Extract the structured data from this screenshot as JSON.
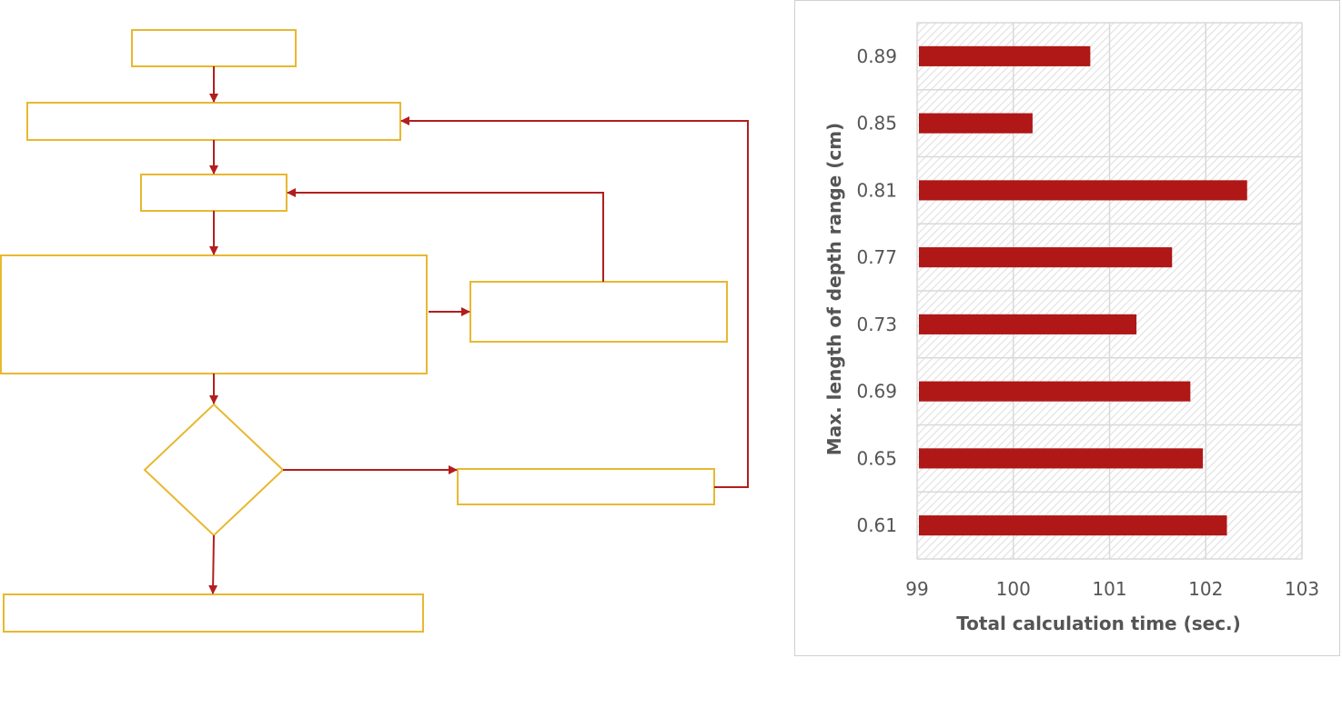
{
  "colors": {
    "box_border": "#e8b830",
    "arrow": "#b21e1e",
    "bar": "#b01717",
    "grid": "#d9d9d9",
    "label_text": "#555555"
  },
  "chart_data": {
    "type": "bar",
    "orientation": "horizontal",
    "categories": [
      "0.61",
      "0.65",
      "0.69",
      "0.73",
      "0.77",
      "0.81",
      "0.85",
      "0.89"
    ],
    "values": [
      102.22,
      101.97,
      101.84,
      101.28,
      101.65,
      102.43,
      100.2,
      100.8
    ],
    "xlabel": "Total calculation time (sec.)",
    "ylabel": "Max. length of depth range (cm)",
    "xlim": [
      99,
      103
    ],
    "xticks": [
      "99",
      "100",
      "101",
      "102",
      "103"
    ],
    "grid": true,
    "legend": "none"
  }
}
